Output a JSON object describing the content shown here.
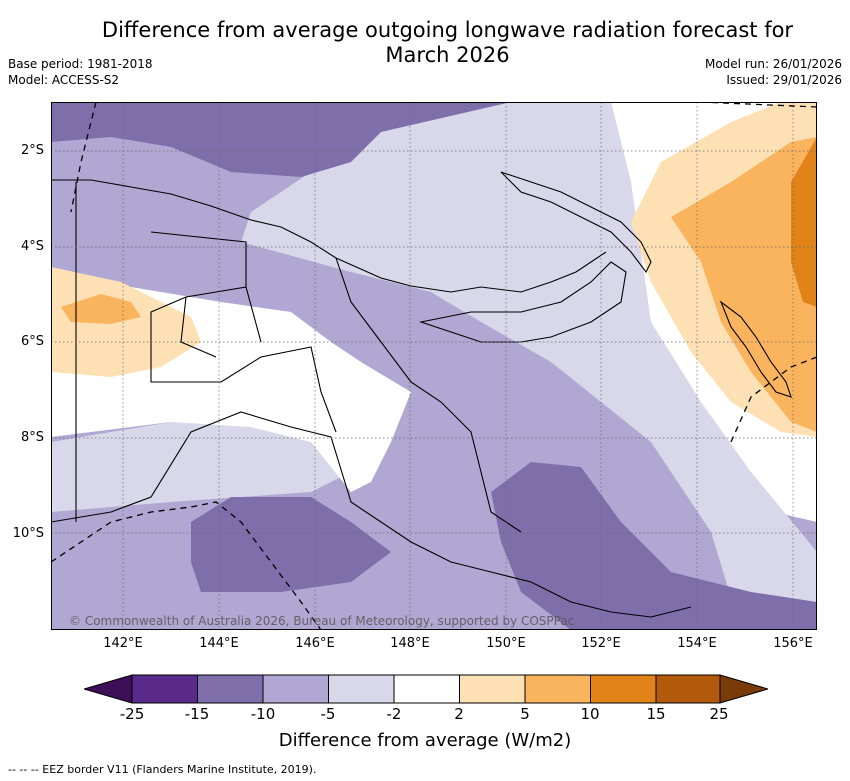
{
  "header": {
    "title_line1": "Difference from average outgoing longwave radiation forecast for",
    "title_line2": "March 2026",
    "base_period": "Base period: 1981-2018",
    "model": "Model: ACCESS-S2",
    "model_run": "Model run: 26/01/2026",
    "issued": "Issued: 29/01/2026"
  },
  "map": {
    "latitude_labels": [
      "2°S",
      "4°S",
      "6°S",
      "8°S",
      "10°S"
    ],
    "longitude_labels": [
      "142°E",
      "144°E",
      "146°E",
      "148°E",
      "150°E",
      "152°E",
      "154°E",
      "156°E"
    ],
    "copyright": "© Commonwealth of Australia 2026, Bureau of Meteorology, supported by COSPPac",
    "colors": {
      "c_m25": "#3c0f58",
      "c_m15": "#5a2a8a",
      "c_m10": "#7e6fab",
      "c_m5": "#b0a8d2",
      "c_m2": "#d8d8ea",
      "c_0": "#ffffff",
      "c_2": "#fde0b4",
      "c_5": "#fbb45e",
      "c_10": "#e18319",
      "c_15": "#b15a0b",
      "c_25": "#7a3b0a"
    }
  },
  "colorbar": {
    "tick_labels": [
      "-25",
      "-15",
      "-10",
      "-5",
      "-2",
      "2",
      "5",
      "10",
      "15",
      "25"
    ],
    "title": "Difference from average (W/m2)"
  },
  "footnote": "-- -- -- EEZ border V11 (Flanders Marine Institute, 2019)."
}
